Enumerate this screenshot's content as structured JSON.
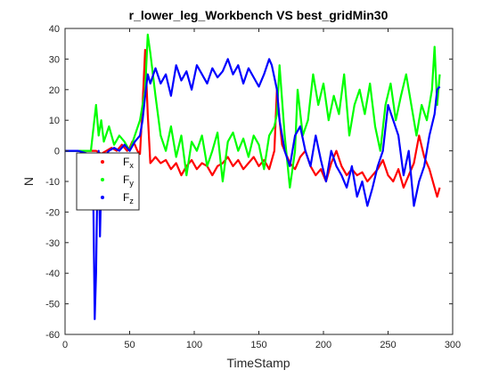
{
  "chart_data": {
    "type": "line",
    "title": "r_lower_leg_Workbench VS  best_gridMin30",
    "xlabel": "TimeStamp",
    "ylabel": "N",
    "xlim": [
      0,
      300
    ],
    "ylim": [
      -60,
      40
    ],
    "xticks": [
      0,
      50,
      100,
      150,
      200,
      250,
      300
    ],
    "yticks": [
      -60,
      -50,
      -40,
      -30,
      -20,
      -10,
      0,
      10,
      20,
      30,
      40
    ],
    "grid": false,
    "legend_position": "left, below the zero line",
    "series": [
      {
        "name": "F",
        "subscript": "x",
        "color": "#ff0000",
        "x": [
          0,
          10,
          20,
          24,
          28,
          32,
          36,
          40,
          44,
          48,
          50,
          52,
          54,
          56,
          58,
          60,
          62,
          64,
          66,
          70,
          74,
          78,
          82,
          86,
          90,
          94,
          98,
          102,
          106,
          110,
          114,
          118,
          122,
          126,
          130,
          134,
          138,
          142,
          146,
          150,
          154,
          158,
          160,
          162,
          164,
          166,
          168,
          170,
          174,
          178,
          182,
          186,
          190,
          194,
          198,
          202,
          206,
          210,
          214,
          218,
          222,
          226,
          230,
          234,
          238,
          242,
          246,
          250,
          254,
          258,
          262,
          266,
          270,
          274,
          278,
          282,
          286,
          288,
          290
        ],
        "y": [
          0,
          0,
          0,
          0,
          -1,
          0,
          1,
          0,
          2,
          0,
          1,
          3,
          2,
          0,
          -1,
          15,
          33,
          12,
          -4,
          -2,
          -4,
          -3,
          -6,
          -4,
          -8,
          -5,
          -3,
          -6,
          -4,
          -5,
          -8,
          -5,
          -4,
          -2,
          -5,
          -3,
          -6,
          -4,
          -2,
          -5,
          -3,
          -6,
          -3,
          0,
          20,
          10,
          2,
          0,
          -4,
          -6,
          -2,
          0,
          -5,
          -8,
          -6,
          -10,
          -4,
          0,
          -5,
          -8,
          -6,
          -8,
          -7,
          -10,
          -8,
          -6,
          -3,
          -8,
          -10,
          -6,
          -12,
          -8,
          -4,
          5,
          -2,
          -6,
          -12,
          -15,
          -12
        ]
      },
      {
        "name": "F",
        "subscript": "y",
        "color": "#00ff00",
        "x": [
          0,
          10,
          20,
          24,
          26,
          28,
          30,
          34,
          38,
          42,
          46,
          50,
          54,
          58,
          62,
          64,
          66,
          70,
          74,
          78,
          82,
          86,
          90,
          94,
          98,
          102,
          106,
          110,
          114,
          118,
          122,
          126,
          130,
          134,
          138,
          142,
          146,
          150,
          154,
          158,
          162,
          164,
          166,
          170,
          174,
          178,
          180,
          184,
          188,
          192,
          196,
          200,
          204,
          208,
          212,
          216,
          220,
          224,
          228,
          232,
          236,
          240,
          244,
          248,
          252,
          256,
          260,
          264,
          268,
          272,
          276,
          280,
          284,
          286,
          288,
          290
        ],
        "y": [
          0,
          0,
          0,
          15,
          5,
          10,
          3,
          8,
          2,
          5,
          3,
          0,
          5,
          10,
          20,
          38,
          32,
          18,
          5,
          0,
          8,
          -2,
          5,
          -8,
          3,
          0,
          5,
          -5,
          0,
          6,
          -10,
          3,
          6,
          0,
          4,
          -2,
          5,
          2,
          -6,
          5,
          8,
          12,
          28,
          5,
          -12,
          0,
          20,
          5,
          10,
          25,
          15,
          22,
          10,
          18,
          12,
          25,
          5,
          15,
          20,
          12,
          22,
          8,
          0,
          15,
          22,
          10,
          18,
          25,
          15,
          5,
          15,
          10,
          20,
          34,
          15,
          25
        ]
      },
      {
        "name": "F",
        "subscript": "z",
        "color": "#0000ff",
        "x": [
          0,
          10,
          18,
          20,
          22,
          23,
          24,
          25,
          26,
          27,
          28,
          30,
          34,
          38,
          42,
          46,
          50,
          54,
          58,
          60,
          62,
          64,
          66,
          70,
          74,
          78,
          82,
          86,
          90,
          94,
          98,
          102,
          106,
          110,
          114,
          118,
          122,
          126,
          130,
          134,
          138,
          142,
          146,
          150,
          154,
          158,
          160,
          162,
          164,
          166,
          170,
          174,
          178,
          182,
          186,
          190,
          194,
          198,
          202,
          206,
          210,
          214,
          218,
          222,
          226,
          230,
          234,
          238,
          242,
          246,
          250,
          254,
          258,
          262,
          266,
          270,
          274,
          278,
          282,
          286,
          288,
          290
        ],
        "y": [
          0,
          0,
          -1,
          -5,
          -20,
          -55,
          -40,
          -10,
          0,
          -28,
          -10,
          -2,
          0,
          1,
          0,
          2,
          0,
          3,
          5,
          10,
          18,
          25,
          22,
          27,
          22,
          25,
          18,
          28,
          23,
          26,
          20,
          28,
          25,
          22,
          27,
          24,
          26,
          30,
          25,
          28,
          22,
          27,
          24,
          21,
          25,
          30,
          28,
          24,
          20,
          10,
          0,
          -5,
          5,
          8,
          0,
          -5,
          5,
          -3,
          -10,
          0,
          -5,
          -8,
          -12,
          -5,
          -15,
          -10,
          -18,
          -12,
          -5,
          0,
          15,
          10,
          5,
          -8,
          0,
          -18,
          -10,
          -5,
          5,
          12,
          20,
          21
        ]
      }
    ]
  }
}
